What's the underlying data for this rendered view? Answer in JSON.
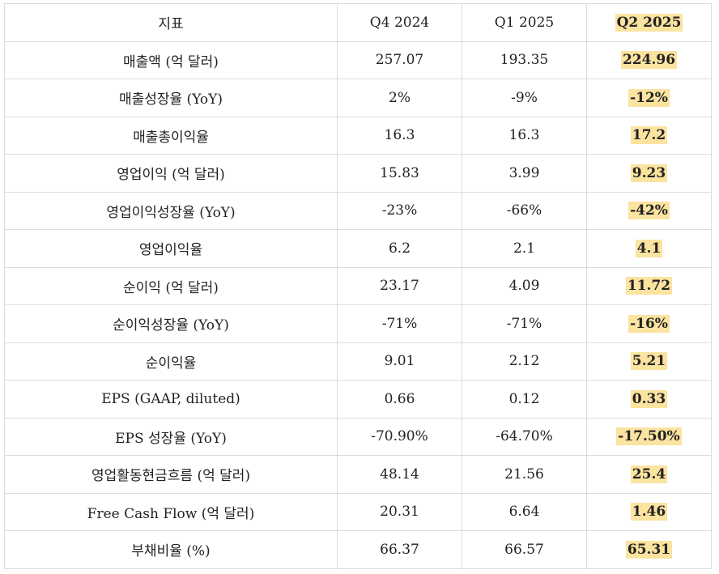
{
  "table": {
    "headers": [
      "지표",
      "Q4 2024",
      "Q1 2025",
      "Q2 2025"
    ],
    "rows": [
      {
        "label": "매출액 (억 달러)",
        "q4_2024": "257.07",
        "q1_2025": "193.35",
        "q2_2025": "224.96"
      },
      {
        "label": "매출성장율 (YoY)",
        "q4_2024": "2%",
        "q1_2025": "-9%",
        "q2_2025": "-12%"
      },
      {
        "label": "매출총이익율",
        "q4_2024": "16.3",
        "q1_2025": "16.3",
        "q2_2025": "17.2"
      },
      {
        "label": "영업이익 (억 달러)",
        "q4_2024": "15.83",
        "q1_2025": "3.99",
        "q2_2025": "9.23"
      },
      {
        "label": "영업이익성장율 (YoY)",
        "q4_2024": "-23%",
        "q1_2025": "-66%",
        "q2_2025": "-42%"
      },
      {
        "label": "영업이익율",
        "q4_2024": "6.2",
        "q1_2025": "2.1",
        "q2_2025": "4.1"
      },
      {
        "label": "순이익 (억 달러)",
        "q4_2024": "23.17",
        "q1_2025": "4.09",
        "q2_2025": "11.72"
      },
      {
        "label": "순이익성장율 (YoY)",
        "q4_2024": "-71%",
        "q1_2025": "-71%",
        "q2_2025": "-16%"
      },
      {
        "label": "순이익율",
        "q4_2024": "9.01",
        "q1_2025": "2.12",
        "q2_2025": "5.21"
      },
      {
        "label": "EPS (GAAP, diluted)",
        "q4_2024": "0.66",
        "q1_2025": "0.12",
        "q2_2025": "0.33"
      },
      {
        "label": "EPS 성장율 (YoY)",
        "q4_2024": "-70.90%",
        "q1_2025": "-64.70%",
        "q2_2025": "-17.50%"
      },
      {
        "label": "영업활동현금흐름 (억 달러)",
        "q4_2024": "48.14",
        "q1_2025": "21.56",
        "q2_2025": "25.4"
      },
      {
        "label": "Free Cash Flow (억 달러)",
        "q4_2024": "20.31",
        "q1_2025": "6.64",
        "q2_2025": "1.46"
      },
      {
        "label": "부채비율 (%)",
        "q4_2024": "66.37",
        "q1_2025": "66.57",
        "q2_2025": "65.31"
      }
    ]
  },
  "colors": {
    "highlight": "#fbe3a0",
    "border": "#dcdcdc",
    "text": "#222222"
  }
}
